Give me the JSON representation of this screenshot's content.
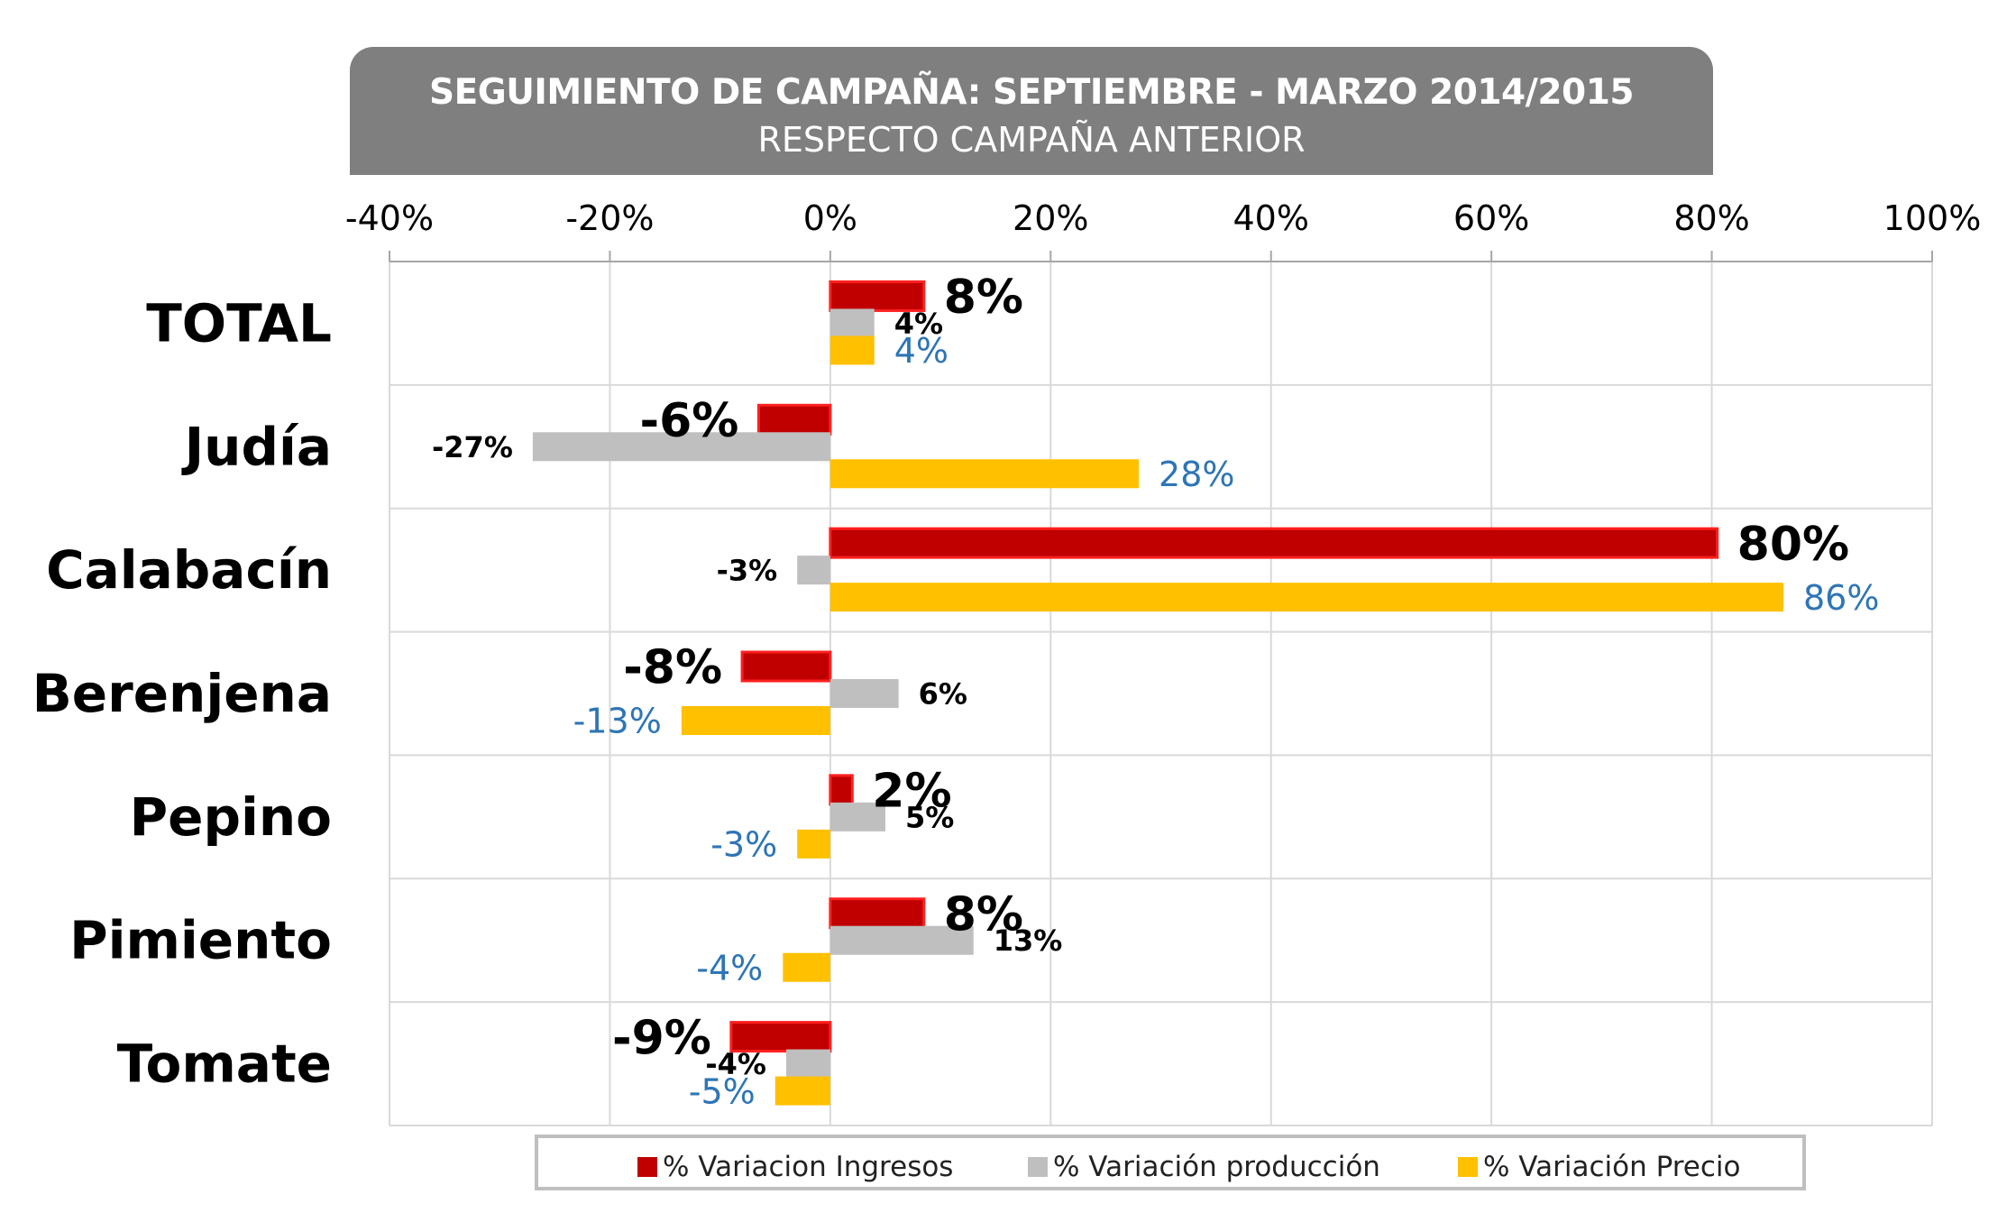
{
  "chart_data": {
    "type": "bar",
    "orientation": "horizontal",
    "title": "SEGUIMIENTO DE CAMPAÑA: SEPTIEMBRE - MARZO 2014/2015",
    "subtitle": "RESPECTO CAMPAÑA ANTERIOR",
    "categories": [
      "TOTAL",
      "Judía",
      "Calabacín",
      "Berenjena",
      "Pepino",
      "Pimiento",
      "Tomate"
    ],
    "xlim": [
      -40,
      100
    ],
    "x_ticks": [
      "-40%",
      "-20%",
      "0%",
      "20%",
      "40%",
      "60%",
      "80%",
      "100%"
    ],
    "x_tick_values": [
      -40,
      -20,
      0,
      20,
      40,
      60,
      80,
      100
    ],
    "grid": true,
    "legend_position": "bottom",
    "series": [
      {
        "name": "% Variacion Ingresos",
        "color": "#c00000",
        "values": [
          8.5,
          -6.5,
          80.5,
          -8,
          2,
          8.5,
          -9
        ],
        "labels": [
          "8%",
          "-6%",
          "80%",
          "-8%",
          "2%",
          "8%",
          "-9%"
        ]
      },
      {
        "name": "% Variación producción",
        "color": "#bfbfbf",
        "values": [
          4,
          -27,
          -3,
          6.2,
          5,
          13,
          -4
        ],
        "labels": [
          "4%",
          "-27%",
          "-3%",
          "6%",
          "5%",
          "13%",
          "-4%"
        ]
      },
      {
        "name": "% Variación Precio",
        "color": "#ffc000",
        "values": [
          4,
          28,
          86.5,
          -13.5,
          -3,
          -4.3,
          -5
        ],
        "labels": [
          "4%",
          "28%",
          "86%",
          "-13%",
          "-3%",
          "-4%",
          "-5%"
        ]
      }
    ]
  }
}
